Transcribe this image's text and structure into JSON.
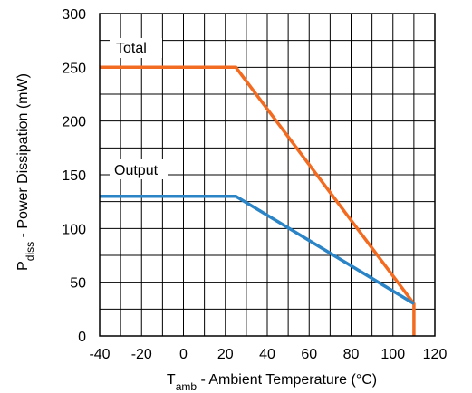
{
  "chart_data": {
    "type": "line",
    "title": "",
    "xlabel": {
      "main": "T",
      "sub": "amb",
      "rest": " - Ambient Temperature (°C)"
    },
    "ylabel": {
      "main": "P",
      "sub": "diss",
      "rest": " - Power Dissipation (mW)"
    },
    "xlim": [
      -40,
      120
    ],
    "ylim": [
      0,
      300
    ],
    "xticks": [
      "-40",
      "-20",
      "0",
      "20",
      "40",
      "60",
      "80",
      "100",
      "120"
    ],
    "yticks": [
      "0",
      "50",
      "100",
      "150",
      "200",
      "250",
      "300"
    ],
    "grid": true,
    "legend": "inline labels",
    "series": [
      {
        "name": "Total",
        "color": "#f26b21",
        "x": [
          -40,
          25,
          110,
          110
        ],
        "y": [
          250,
          250,
          30,
          0
        ]
      },
      {
        "name": "Output",
        "color": "#2a84c6",
        "x": [
          -40,
          25,
          110
        ],
        "y": [
          130,
          130,
          30
        ]
      }
    ]
  }
}
